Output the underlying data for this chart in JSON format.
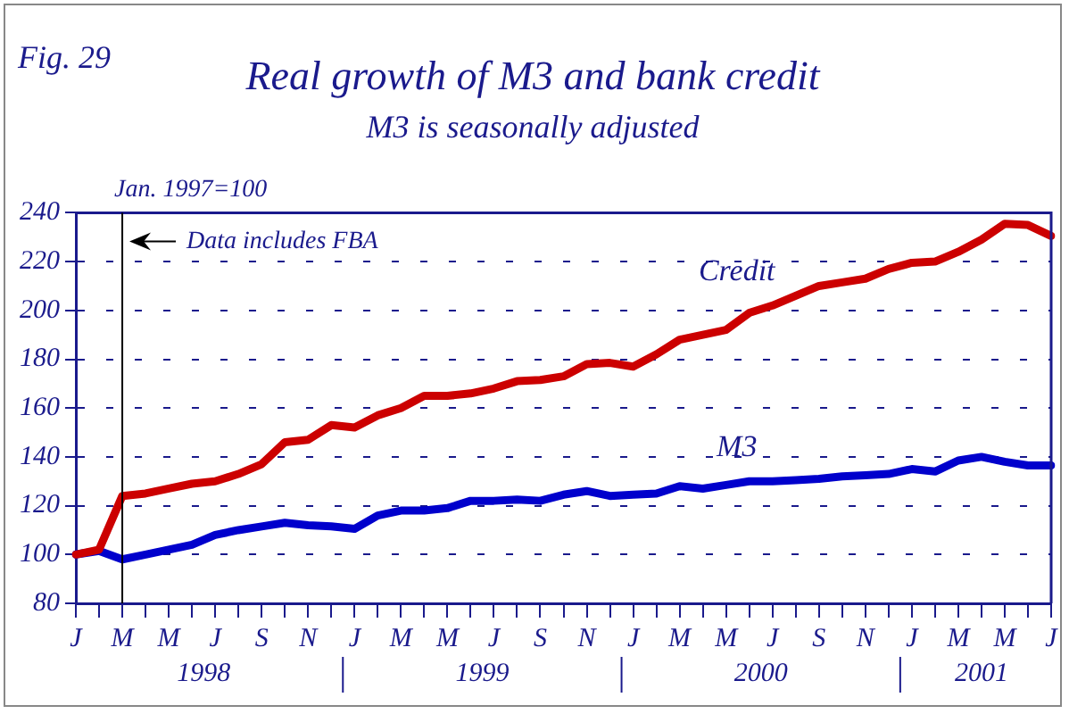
{
  "chart_data": {
    "type": "line",
    "title": "Real growth of M3 and bank credit",
    "subtitle": "M3 is seasonally adjusted",
    "annotations": [
      "Fig. 29",
      "Jan. 1997=100",
      "1998",
      "1999",
      "2000",
      "2001"
    ],
    "categories": [
      "J",
      null,
      "M",
      null,
      "M",
      null,
      "J",
      null,
      "S",
      null,
      "N",
      null,
      "J",
      null,
      "M",
      null,
      "M",
      null,
      "J",
      null,
      "S",
      null,
      "N",
      null,
      "J",
      null,
      "M",
      null,
      "M",
      null,
      "J",
      null,
      "S",
      null,
      "N",
      null,
      "J",
      null,
      "M",
      null,
      "M",
      null,
      "J"
    ],
    "series": [
      {
        "name": "Credit",
        "color": "#cc0000",
        "values": [
          100,
          102,
          124,
          125,
          127,
          129,
          130,
          133,
          137,
          146,
          147,
          153,
          152,
          157,
          160,
          165,
          165,
          166,
          168,
          171,
          171.5,
          173,
          178,
          178.5,
          177,
          182,
          188,
          190,
          192,
          199,
          202,
          206,
          210,
          211.5,
          213,
          217,
          219.5,
          220,
          224,
          229,
          235.5,
          235,
          230.5
        ]
      },
      {
        "name": "M3",
        "color": "#0000cc",
        "values": [
          100,
          101.5,
          98,
          100,
          102,
          104,
          108,
          110,
          111.5,
          113,
          112,
          111.5,
          110.5,
          116,
          118,
          118,
          119,
          122,
          122,
          122.5,
          122,
          124.5,
          126,
          124,
          124.5,
          125,
          128,
          127,
          128.5,
          130,
          130,
          130.5,
          131,
          132,
          132.5,
          133,
          135,
          134,
          138.5,
          140,
          138,
          136.5,
          136.5
        ]
      }
    ],
    "ylim": [
      80,
      240
    ],
    "yticks": [
      80,
      100,
      120,
      140,
      160,
      180,
      200,
      220,
      240
    ],
    "grid": "y",
    "legend": false,
    "marker": "none",
    "line_style": "solid",
    "ref_lines": [
      {
        "axis": "x",
        "value": "M",
        "label": "Data includes FBA",
        "color": "#000000"
      }
    ]
  }
}
